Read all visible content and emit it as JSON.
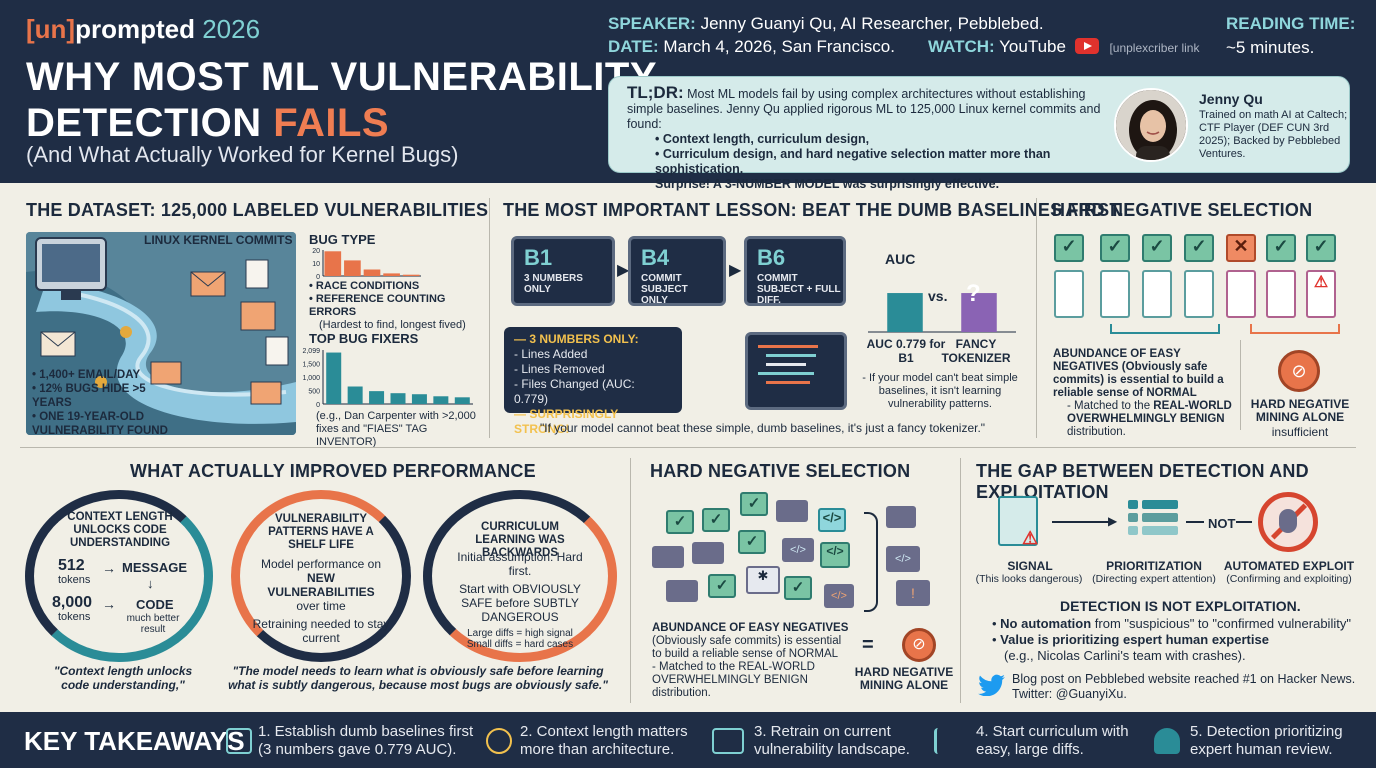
{
  "header": {
    "brand_bracket": "[un]",
    "brand_word": "prompted",
    "brand_year": "2026",
    "title_line1": "WHY MOST ML VULNERABILITY",
    "title_line2_a": "DETECTION ",
    "title_line2_b": "FAILS",
    "subtitle": "(And What Actually Worked for Kernel Bugs)",
    "speaker_label": "SPEAKER:",
    "speaker_value": "Jenny Guanyi Qu, AI Researcher, Pebblebed.",
    "date_label": "DATE:",
    "date_value": "March 4, 2026, San Francisco.",
    "watch_label": "WATCH:",
    "watch_value": "YouTube",
    "watch_link": "[unplexcriber link",
    "reading_label": "READING TIME:",
    "reading_value": "~5 minutes."
  },
  "tldr": {
    "label": "TL;DR:",
    "text1": "Most ML models fail by using complex architectures without establishing simple baselines. Jenny Qu applied rigorous ML to 125,000 Linux kernel commits and found:",
    "bullet1": "Context length, curriculum design,",
    "bullet2": "Curriculum design, and hard negative selection matter more than sophistication.",
    "closing": "Surprise! A 3-NUMBER MODEL was surprisingly effective.",
    "person_name": "Jenny Qu",
    "person_bio": "Trained on math AI at Caltech; CTF Player (DEF CUN 3rd 2025); Backed by Pebblebed Ventures."
  },
  "dataset": {
    "title": "THE DATASET: 125,000 LABELED VULNERABILITIES",
    "scene_label": "LINUX KERNEL COMMITS",
    "stats": [
      "1,400+ EMAIL/DAY",
      "12% BUGS HIDE >5 YEARS",
      "ONE 19-YEAR-OLD VULNERABILITY FOUND"
    ],
    "bug_type_title": "BUG TYPE",
    "bug_type_bullets": [
      "RACE CONDITIONS",
      "REFERENCE COUNTING ERRORS"
    ],
    "bug_type_note": "(Hardest to find, longest fived)",
    "fixers_title": "TOP BUG FIXERS",
    "fixers_note": "(e.g., Dan Carpenter with >2,000 fixes and \"FIAES\" TAG INVENTOR)"
  },
  "chart_data": [
    {
      "type": "bar",
      "title": "BUG TYPE",
      "categories": [
        "1",
        "2",
        "3",
        "4",
        "5"
      ],
      "values": [
        19,
        12,
        5,
        2,
        1
      ],
      "ylim": [
        0,
        20
      ],
      "yticks": [
        "20",
        "10",
        "0"
      ],
      "colors": [
        "#e8744a",
        "#e8744a",
        "#e8744a",
        "#e8744a",
        "#e8744a"
      ]
    },
    {
      "type": "bar",
      "title": "TOP BUG FIXERS",
      "categories": [
        "1",
        "2",
        "3",
        "4",
        "5",
        "6",
        "7"
      ],
      "values": [
        2000,
        680,
        500,
        420,
        380,
        300,
        260
      ],
      "ylim": [
        0,
        2099
      ],
      "yticks": [
        "2,099",
        "1,500",
        "1,000",
        "500",
        "0"
      ],
      "colors": [
        "#2a8c97",
        "#2a8c97",
        "#2a8c97",
        "#2a8c97",
        "#2a8c97",
        "#2a8c97",
        "#2a8c97"
      ]
    },
    {
      "type": "bar",
      "title": "AUC",
      "categories": [
        "AUC 0.779 for B1",
        "FANCY TOKENIZER"
      ],
      "values": [
        0.779,
        0.779
      ],
      "ylim": [
        0,
        1
      ],
      "colors": [
        "#2a8c97",
        "#8a63b4"
      ]
    }
  ],
  "baselines": {
    "title": "THE MOST IMPORTANT LESSON: BEAT THE DUMB BASELINES FIRST.",
    "b1_code": "B1",
    "b1_label": "3 NUMBERS ONLY",
    "b4_code": "B4",
    "b4_label": "COMMIT SUBJECT ONLY",
    "b6_code": "B6",
    "b6_label": "COMMIT SUBJECT + FULL DIFF.",
    "box_title": "— 3 NUMBERS ONLY:",
    "box_items": [
      "- Lines Added",
      "- Lines Removed",
      "- Files Changed (AUC: 0.779)"
    ],
    "box_footer": "— SURPRISINGLY STRONG!",
    "auc_label": "AUC",
    "vs": "vs.",
    "question": "?",
    "bar1_label": "AUC 0.779 for B1",
    "bar2_label": "FANCY TOKENIZER",
    "note": "- If your model can't beat simple baselines, it isn't learning vulnerability patterns.",
    "quote": "\"If your model cannot beat these simple, dumb baselines, it's just a fancy tokenizer.\""
  },
  "hardneg1": {
    "title": "HARD NEGATIVE SELECTION",
    "main_text": "ABUNDANCE OF EASY NEGATIVES (Obviously safe commits) is essential to build a reliable sense of NORMAL",
    "sub_text_a": "- Matched to the ",
    "sub_text_b": "REAL-WORLD OVERWHELMINGLY BENIGN",
    "sub_text_c": " distribution.",
    "side_title": "HARD NEGATIVE MINING ALONE",
    "side_sub": "insufficient"
  },
  "improved": {
    "title": "WHAT ACTUALLY IMPROVED PERFORMANCE",
    "c1_title": "CONTEXT LENGTH UNLOCKS CODE UNDERSTANDING",
    "c1_n1": "512",
    "c1_t1": "tokens",
    "c1_r1": "MESSAGE",
    "c1_n2": "8,000",
    "c1_t2": "tokens",
    "c1_r2": "CODE",
    "c1_r2_sub": "much better result",
    "c2_title": "VULNERABILITY PATTERNS HAVE A SHELF LIFE",
    "c2_text_a": "Model performance on",
    "c2_text_b": "NEW VULNERABILITIES",
    "c2_text_c": "over time",
    "c2_text_d": "Retraining needed to stay current",
    "c3_title": "CURRICULUM LEARNING WAS BACKWARDS",
    "c3_text_a": "Initial assumption: Hard first.",
    "c3_text_b": "Start with OBVIOUSLY SAFE before SUBTLY DANGEROUS",
    "c3_text_c": "Large diffs = high signal",
    "c3_text_d": "Small diffs = hard cases",
    "quote1": "\"Context length unlocks code understanding,\"",
    "quote2": "\"The model needs to learn what is obviously safe before learning what is subtly dangerous, because most bugs are obviously safe.\""
  },
  "hardneg2": {
    "title": "HARD NEGATIVE SELECTION",
    "text_a": "ABUNDANCE OF EASY NEGATIVES",
    "text_b": "(Obviously safe commits) is essential to build a reliable sense of NORMAL",
    "text_c": "- Matched to the REAL-WORLD OVERWHELMINGLY BENIGN distribution.",
    "eq": "=",
    "side_title": "HARD NEGATIVE MINING ALONE"
  },
  "gap": {
    "title": "THE GAP BETWEEN DETECTION AND EXPLOITATION",
    "s1": "SIGNAL",
    "s1_sub": "(This looks dangerous)",
    "s2": "PRIORITIZATION",
    "s2_sub": "(Directing expert attention)",
    "not": "NOT",
    "s3": "AUTOMATED EXPLOIT",
    "s3_sub": "(Confirming and exploiting)",
    "headline": "DETECTION IS NOT EXPLOITATION.",
    "b1_bold": "No automation",
    "b1_rest": " from \"suspicious\" to \"confirmed vulnerability\"",
    "b2_bold": "Value is prioritizing espert human expertise",
    "b2_rest": "(e.g., Nicolas Carlini's team with crashes).",
    "social1": "Blog post on Pebblebed website reached #1 on Hacker News.",
    "social2": "Twitter: @GuanyiXu."
  },
  "footer": {
    "title": "KEY TAKEAWAYS",
    "items": [
      "1. Establish dumb baselines first (3 numbers gave 0.779 AUC).",
      "2. Context length matters more than architecture.",
      "3. Retrain on current vulnerability landscape.",
      "4. Start curriculum with easy, large diffs.",
      "5. Detection prioritizing expert human review."
    ]
  },
  "colors": {
    "navy": "#1f2d45",
    "teal": "#2a8c97",
    "orange": "#e8744a",
    "purple": "#8a63b4",
    "cream": "#f1efe6"
  }
}
